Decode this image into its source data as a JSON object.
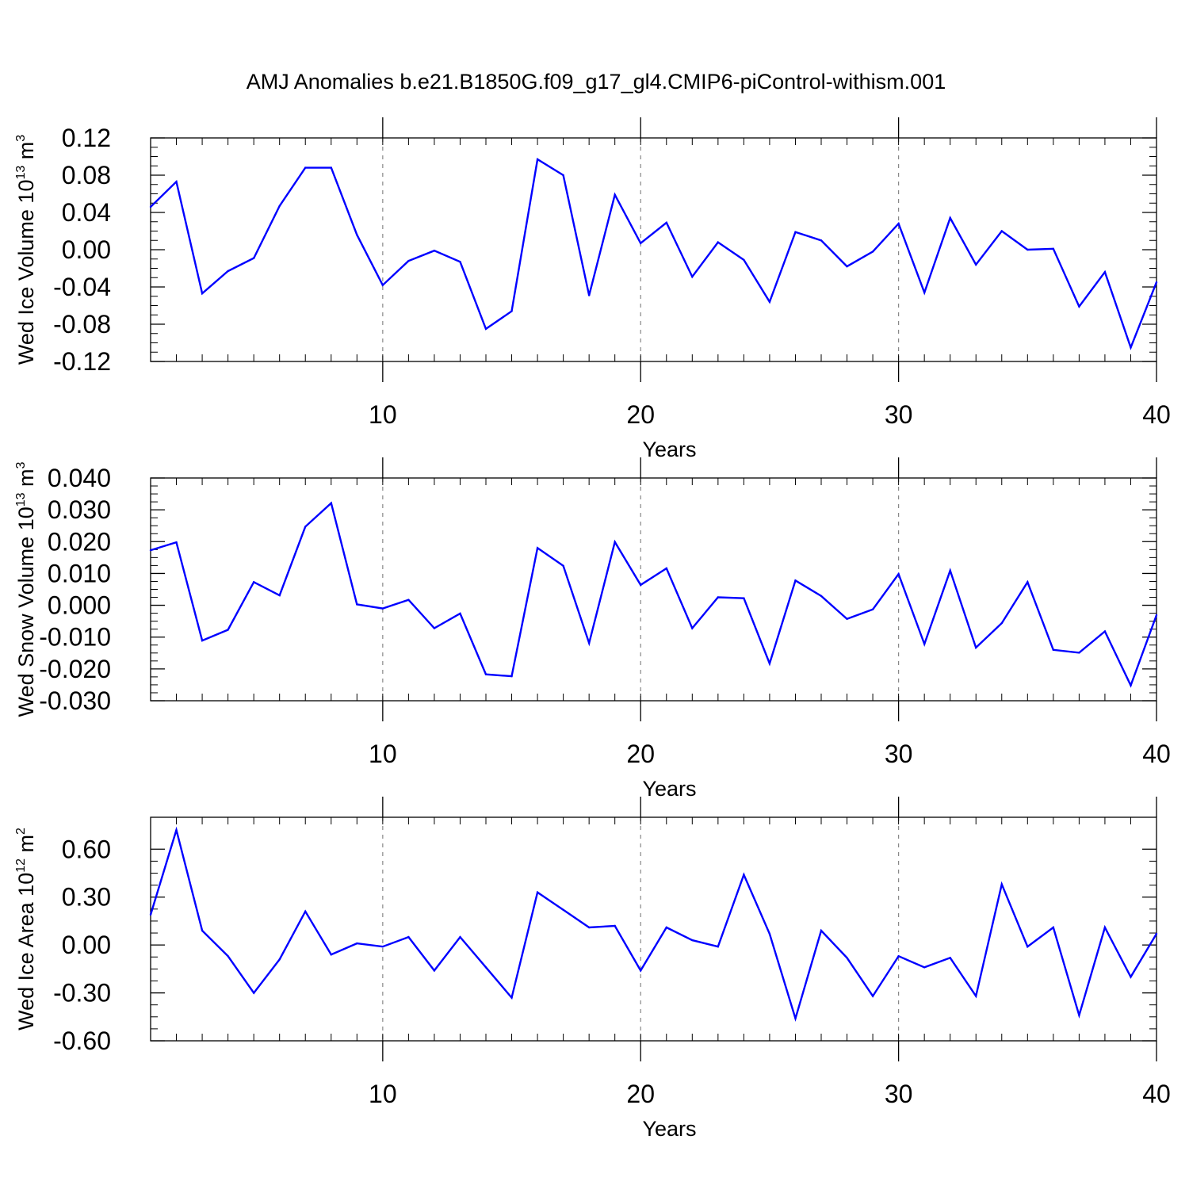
{
  "title": "AMJ Anomalies b.e21.B1850G.f09_g17_gl4.CMIP6-piControl-withism.001",
  "colors": {
    "line": "#0000ff",
    "axis": "#000000",
    "grid": "#888888",
    "background": "#ffffff"
  },
  "chart_data": [
    {
      "type": "line",
      "ylabel": "Wed Ice Volume 10",
      "ylabel_exp": "13",
      "ylabel_unit": " m",
      "ylabel_unit_exp": "3",
      "xlabel": "Years",
      "xlim": [
        1,
        40
      ],
      "ylim": [
        -0.12,
        0.12
      ],
      "x_major_ticks": [
        10,
        20,
        30,
        40
      ],
      "x_tick_labels": [
        "10",
        "20",
        "30",
        "40"
      ],
      "y_ticks": [
        0.12,
        0.08,
        0.04,
        0.0,
        -0.04,
        -0.08,
        -0.12
      ],
      "y_tick_labels": [
        "0.12",
        "0.08",
        "0.04",
        "0.00",
        "-0.04",
        "-0.08",
        "-0.12"
      ],
      "grid_x": [
        10,
        20,
        30
      ],
      "series": [
        {
          "name": "Wed Ice Volume",
          "x": [
            1,
            2,
            3,
            4,
            5,
            6,
            7,
            8,
            9,
            10,
            11,
            12,
            13,
            14,
            15,
            16,
            17,
            18,
            19,
            20,
            21,
            22,
            23,
            24,
            25,
            26,
            27,
            28,
            29,
            30,
            31,
            32,
            33,
            34,
            35,
            36,
            37,
            38,
            39,
            40
          ],
          "values": [
            0.046,
            0.073,
            -0.047,
            -0.023,
            -0.009,
            0.047,
            0.088,
            0.088,
            0.016,
            -0.038,
            -0.012,
            -0.001,
            -0.013,
            -0.085,
            -0.066,
            0.097,
            0.08,
            -0.049,
            0.059,
            0.007,
            0.029,
            -0.029,
            0.008,
            -0.011,
            -0.056,
            0.019,
            0.01,
            -0.018,
            -0.002,
            0.028,
            -0.046,
            0.034,
            -0.016,
            0.02,
            0.0,
            0.001,
            -0.061,
            -0.024,
            -0.105,
            -0.035
          ]
        }
      ]
    },
    {
      "type": "line",
      "ylabel": "Wed Snow Volume 10",
      "ylabel_exp": "13",
      "ylabel_unit": " m",
      "ylabel_unit_exp": "3",
      "xlabel": "Years",
      "xlim": [
        1,
        40
      ],
      "ylim": [
        -0.03,
        0.04
      ],
      "x_major_ticks": [
        10,
        20,
        30,
        40
      ],
      "x_tick_labels": [
        "10",
        "20",
        "30",
        "40"
      ],
      "y_ticks": [
        0.04,
        0.03,
        0.02,
        0.01,
        0.0,
        -0.01,
        -0.02,
        -0.03
      ],
      "y_tick_labels": [
        "0.040",
        "0.030",
        "0.020",
        "0.010",
        "0.000",
        "-0.010",
        "-0.020",
        "-0.030"
      ],
      "grid_x": [
        10,
        20,
        30
      ],
      "series": [
        {
          "name": "Wed Snow Volume",
          "x": [
            1,
            2,
            3,
            4,
            5,
            6,
            7,
            8,
            9,
            10,
            11,
            12,
            13,
            14,
            15,
            16,
            17,
            18,
            19,
            20,
            21,
            22,
            23,
            24,
            25,
            26,
            27,
            28,
            29,
            30,
            31,
            32,
            33,
            34,
            35,
            36,
            37,
            38,
            39,
            40
          ],
          "values": [
            0.0173,
            0.0198,
            -0.0111,
            -0.0077,
            0.0073,
            0.0031,
            0.0247,
            0.0321,
            0.0003,
            -0.001,
            0.0017,
            -0.0072,
            -0.0026,
            -0.0217,
            -0.0223,
            0.018,
            0.0124,
            -0.0119,
            0.0199,
            0.0064,
            0.0116,
            -0.0072,
            0.0025,
            0.0022,
            -0.0183,
            0.0078,
            0.0029,
            -0.0043,
            -0.0013,
            0.0098,
            -0.0122,
            0.0109,
            -0.0133,
            -0.0056,
            0.0073,
            -0.014,
            -0.0149,
            -0.0082,
            -0.0252,
            -0.0031
          ]
        }
      ]
    },
    {
      "type": "line",
      "ylabel": "Wed Ice Area 10",
      "ylabel_exp": "12",
      "ylabel_unit": " m",
      "ylabel_unit_exp": "2",
      "xlabel": "Years",
      "xlim": [
        1,
        40
      ],
      "ylim": [
        -0.6,
        0.8
      ],
      "x_major_ticks": [
        10,
        20,
        30,
        40
      ],
      "x_tick_labels": [
        "10",
        "20",
        "30",
        "40"
      ],
      "y_ticks": [
        0.6,
        0.3,
        0.0,
        -0.3,
        -0.6
      ],
      "y_tick_labels": [
        "0.60",
        "0.30",
        "0.00",
        "-0.30",
        "-0.60"
      ],
      "grid_x": [
        10,
        20,
        30
      ],
      "series": [
        {
          "name": "Wed Ice Area",
          "x": [
            1,
            2,
            3,
            4,
            5,
            6,
            7,
            8,
            9,
            10,
            11,
            12,
            13,
            14,
            15,
            16,
            17,
            18,
            19,
            20,
            21,
            22,
            23,
            24,
            25,
            26,
            27,
            28,
            29,
            30,
            31,
            32,
            33,
            34,
            35,
            36,
            37,
            38,
            39,
            40
          ],
          "values": [
            0.19,
            0.72,
            0.09,
            -0.07,
            -0.3,
            -0.09,
            0.21,
            -0.06,
            0.01,
            -0.01,
            0.05,
            -0.16,
            0.05,
            -0.14,
            -0.33,
            0.33,
            0.22,
            0.11,
            0.12,
            -0.16,
            0.11,
            0.03,
            -0.01,
            0.44,
            0.07,
            -0.46,
            0.09,
            -0.08,
            -0.32,
            -0.07,
            -0.14,
            -0.08,
            -0.32,
            0.38,
            -0.01,
            0.11,
            -0.44,
            0.11,
            -0.2,
            0.07
          ]
        }
      ]
    }
  ]
}
